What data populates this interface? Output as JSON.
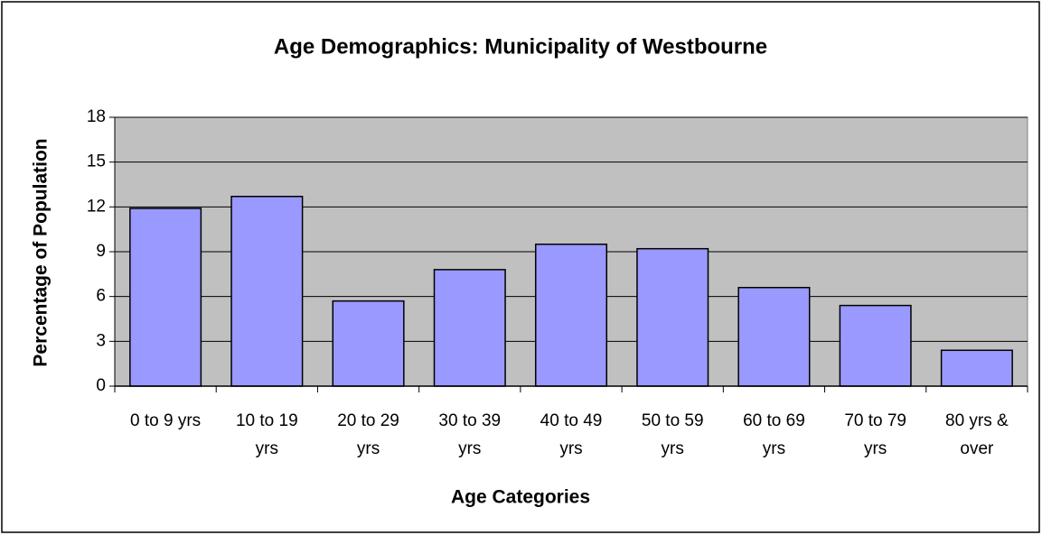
{
  "chart_data": {
    "type": "bar",
    "title": "Age Demographics: Municipality of Westbourne",
    "x_label": "Age Categories",
    "y_label": "Percentage of Population",
    "categories": [
      "0 to 9 yrs",
      "10 to 19 yrs",
      "20 to 29 yrs",
      "30 to 39 yrs",
      "40 to 49 yrs",
      "50 to 59 yrs",
      "60 to 69 yrs",
      "70 to 79 yrs",
      "80 yrs & over"
    ],
    "values": [
      11.9,
      12.7,
      5.7,
      7.8,
      9.5,
      9.2,
      6.6,
      5.4,
      2.4
    ],
    "color": "#9999ff",
    "ylim": [
      0,
      18
    ],
    "yticks": [
      0,
      3,
      6,
      9,
      12,
      15,
      18
    ],
    "grid": true
  }
}
